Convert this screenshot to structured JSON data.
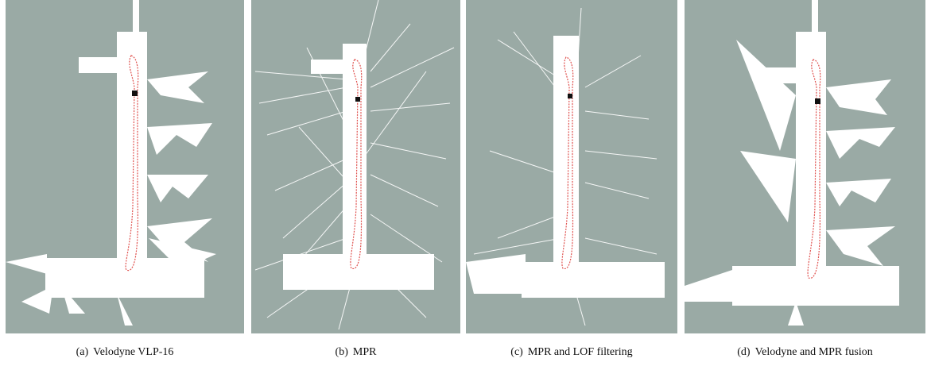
{
  "figure": {
    "background_color": "#9aaaa5",
    "free_space_color": "#ffffff",
    "trajectory_color": "#e0524f",
    "panels": [
      {
        "tag": "(a)",
        "caption": "Velodyne VLP-16"
      },
      {
        "tag": "(b)",
        "caption": "MPR"
      },
      {
        "tag": "(c)",
        "caption": "MPR and LOF filtering"
      },
      {
        "tag": "(d)",
        "caption": "Velodyne and MPR fusion"
      }
    ]
  }
}
